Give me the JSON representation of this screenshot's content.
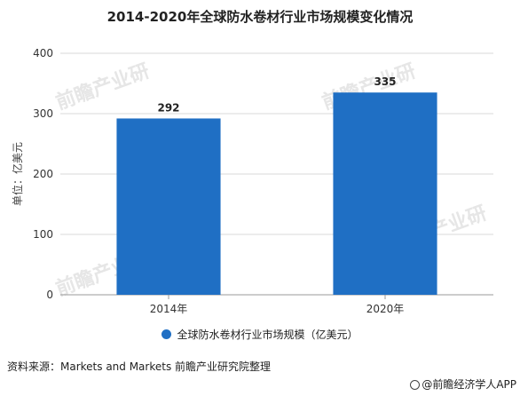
{
  "title": "2014-2020年全球防水卷材行业市场规模变化情况",
  "source": "资料来源：Markets and Markets 前瞻产业研究院整理",
  "brand": "@前瞻经济学人APP",
  "watermark": "前瞻产业研",
  "colors": {
    "bar": "#1f6fc4",
    "grid": "#d9d9d9",
    "axis": "#999999"
  },
  "chart_data": {
    "type": "bar",
    "categories": [
      "2014年",
      "2020年"
    ],
    "series": [
      {
        "name": "全球防水卷材行业市场规模（亿美元）",
        "values": [
          292,
          335
        ]
      }
    ],
    "ylabel": "单位：亿美元",
    "xlabel": "",
    "ylim": [
      0,
      400
    ],
    "yticks": [
      0,
      100,
      200,
      300,
      400
    ],
    "grid": true,
    "legend": "bottom"
  }
}
